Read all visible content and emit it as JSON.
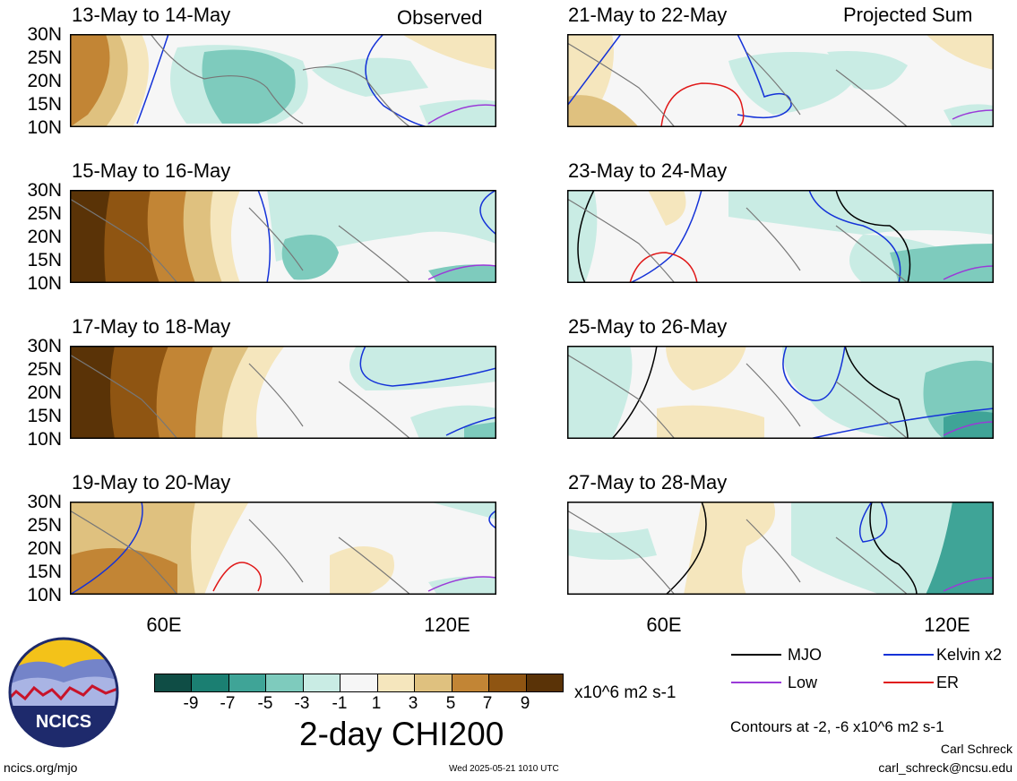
{
  "panels": {
    "left": [
      {
        "title": "13-May to 14-May",
        "label": "Observed"
      },
      {
        "title": "15-May to 16-May",
        "label": ""
      },
      {
        "title": "17-May to 18-May",
        "label": ""
      },
      {
        "title": "19-May to 20-May",
        "label": ""
      }
    ],
    "right": [
      {
        "title": "21-May to 22-May",
        "label": "Projected Sum"
      },
      {
        "title": "23-May to 24-May",
        "label": ""
      },
      {
        "title": "25-May to 26-May",
        "label": ""
      },
      {
        "title": "27-May to 28-May",
        "label": ""
      }
    ]
  },
  "axes": {
    "lat_labels": [
      "30N",
      "25N",
      "20N",
      "15N",
      "10N"
    ],
    "lon_labels": [
      "60E",
      "120E"
    ]
  },
  "colorbar": {
    "tick_labels": [
      "-9",
      "-7",
      "-5",
      "-3",
      "-1",
      "1",
      "3",
      "5",
      "7",
      "9"
    ],
    "colors": [
      "#0f4d45",
      "#1b7f72",
      "#3fa497",
      "#7ecbbd",
      "#c9ece4",
      "#f6f6f6",
      "#f5e6bd",
      "#dfc17f",
      "#c28535",
      "#8f5512",
      "#5a3307"
    ],
    "units": "x10^6 m2 s-1",
    "title": "2-day CHI200"
  },
  "legend": {
    "items": [
      {
        "label": "MJO",
        "color": "#000000"
      },
      {
        "label": "Kelvin x2",
        "color": "#1432d8"
      },
      {
        "label": "Low",
        "color": "#9a3ad8"
      },
      {
        "label": "ER",
        "color": "#e01818"
      }
    ],
    "contours_note": "Contours at -2, -6 x10^6 m2 s-1",
    "author": "Carl Schreck",
    "email": "carl_schreck@ncsu.edu"
  },
  "footer": {
    "site": "ncics.org/mjo",
    "timestamp": "Wed 2025-05-21 1010 UTC",
    "logo_text": "NCICS"
  }
}
